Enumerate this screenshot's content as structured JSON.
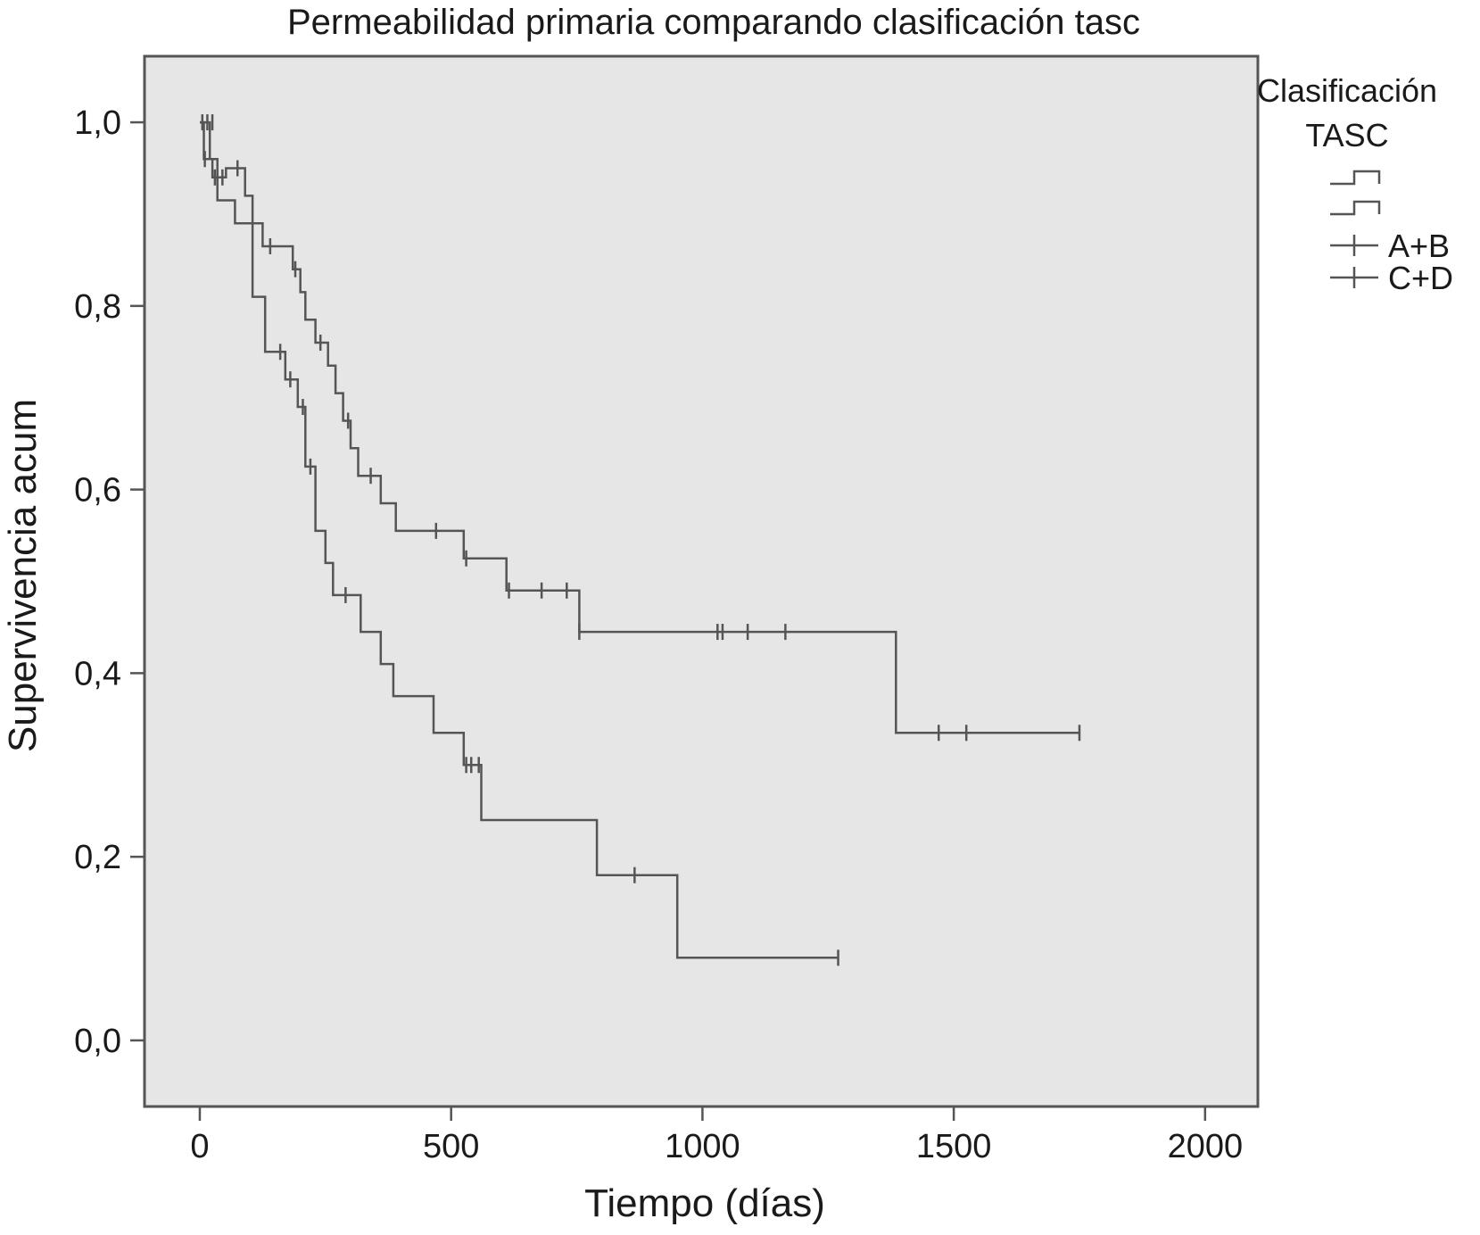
{
  "chart_data": {
    "type": "line",
    "subtype": "kaplan-meier step curves with censoring marks",
    "title": "Permeabilidad primaria comparando clasificación tasc",
    "xlabel": "Tiempo (días)",
    "ylabel": "Supervivencia acum",
    "xlim": [
      -110,
      2105
    ],
    "ylim": [
      -0.072,
      1.072
    ],
    "x_ticks": [
      0,
      500,
      1000,
      1500,
      2000
    ],
    "x_tick_labels": [
      "0",
      "500",
      "1000",
      "1500",
      "2000"
    ],
    "y_ticks": [
      0.0,
      0.2,
      0.4,
      0.6,
      0.8,
      1.0
    ],
    "y_tick_labels": [
      "0,0",
      "0,2",
      "0,4",
      "0,6",
      "0,8",
      "1,0"
    ],
    "grid": false,
    "plot_background": "#e6e6e6",
    "line_color": "#555555",
    "legend": {
      "title_line1": "Clasificación",
      "title_line2": "TASC",
      "placement": "right",
      "entries": [
        "A+B",
        "C+D"
      ]
    },
    "series": [
      {
        "name": "A+B",
        "steps": [
          [
            0,
            1.0
          ],
          [
            8,
            0.96
          ],
          [
            25,
            0.94
          ],
          [
            52,
            0.95
          ],
          [
            90,
            0.92
          ],
          [
            105,
            0.89
          ],
          [
            125,
            0.865
          ],
          [
            185,
            0.84
          ],
          [
            200,
            0.815
          ],
          [
            210,
            0.785
          ],
          [
            230,
            0.76
          ],
          [
            255,
            0.735
          ],
          [
            270,
            0.705
          ],
          [
            285,
            0.675
          ],
          [
            300,
            0.645
          ],
          [
            315,
            0.615
          ],
          [
            360,
            0.585
          ],
          [
            390,
            0.555
          ],
          [
            525,
            0.525
          ],
          [
            610,
            0.49
          ],
          [
            755,
            0.445
          ],
          [
            1385,
            0.335
          ],
          [
            1750,
            0.335
          ]
        ],
        "censored": [
          [
            30,
            0.94
          ],
          [
            45,
            0.94
          ],
          [
            75,
            0.95
          ],
          [
            140,
            0.865
          ],
          [
            190,
            0.84
          ],
          [
            240,
            0.76
          ],
          [
            295,
            0.675
          ],
          [
            340,
            0.615
          ],
          [
            470,
            0.555
          ],
          [
            530,
            0.525
          ],
          [
            615,
            0.49
          ],
          [
            680,
            0.49
          ],
          [
            730,
            0.49
          ],
          [
            755,
            0.445
          ],
          [
            1030,
            0.445
          ],
          [
            1040,
            0.445
          ],
          [
            1090,
            0.445
          ],
          [
            1165,
            0.445
          ],
          [
            1470,
            0.335
          ],
          [
            1525,
            0.335
          ],
          [
            1750,
            0.335
          ]
        ]
      },
      {
        "name": "C+D",
        "steps": [
          [
            0,
            1.0
          ],
          [
            20,
            0.96
          ],
          [
            35,
            0.915
          ],
          [
            70,
            0.89
          ],
          [
            105,
            0.81
          ],
          [
            130,
            0.75
          ],
          [
            170,
            0.72
          ],
          [
            195,
            0.69
          ],
          [
            210,
            0.625
          ],
          [
            230,
            0.555
          ],
          [
            250,
            0.52
          ],
          [
            265,
            0.485
          ],
          [
            320,
            0.445
          ],
          [
            360,
            0.41
          ],
          [
            385,
            0.375
          ],
          [
            465,
            0.335
          ],
          [
            525,
            0.3
          ],
          [
            560,
            0.24
          ],
          [
            790,
            0.18
          ],
          [
            950,
            0.09
          ],
          [
            1270,
            0.09
          ]
        ],
        "censored": [
          [
            5,
            1.0
          ],
          [
            15,
            1.0
          ],
          [
            25,
            1.0
          ],
          [
            10,
            0.96
          ],
          [
            160,
            0.75
          ],
          [
            180,
            0.72
          ],
          [
            205,
            0.69
          ],
          [
            220,
            0.625
          ],
          [
            290,
            0.485
          ],
          [
            530,
            0.3
          ],
          [
            540,
            0.3
          ],
          [
            555,
            0.3
          ],
          [
            865,
            0.18
          ],
          [
            1270,
            0.09
          ]
        ]
      }
    ]
  }
}
